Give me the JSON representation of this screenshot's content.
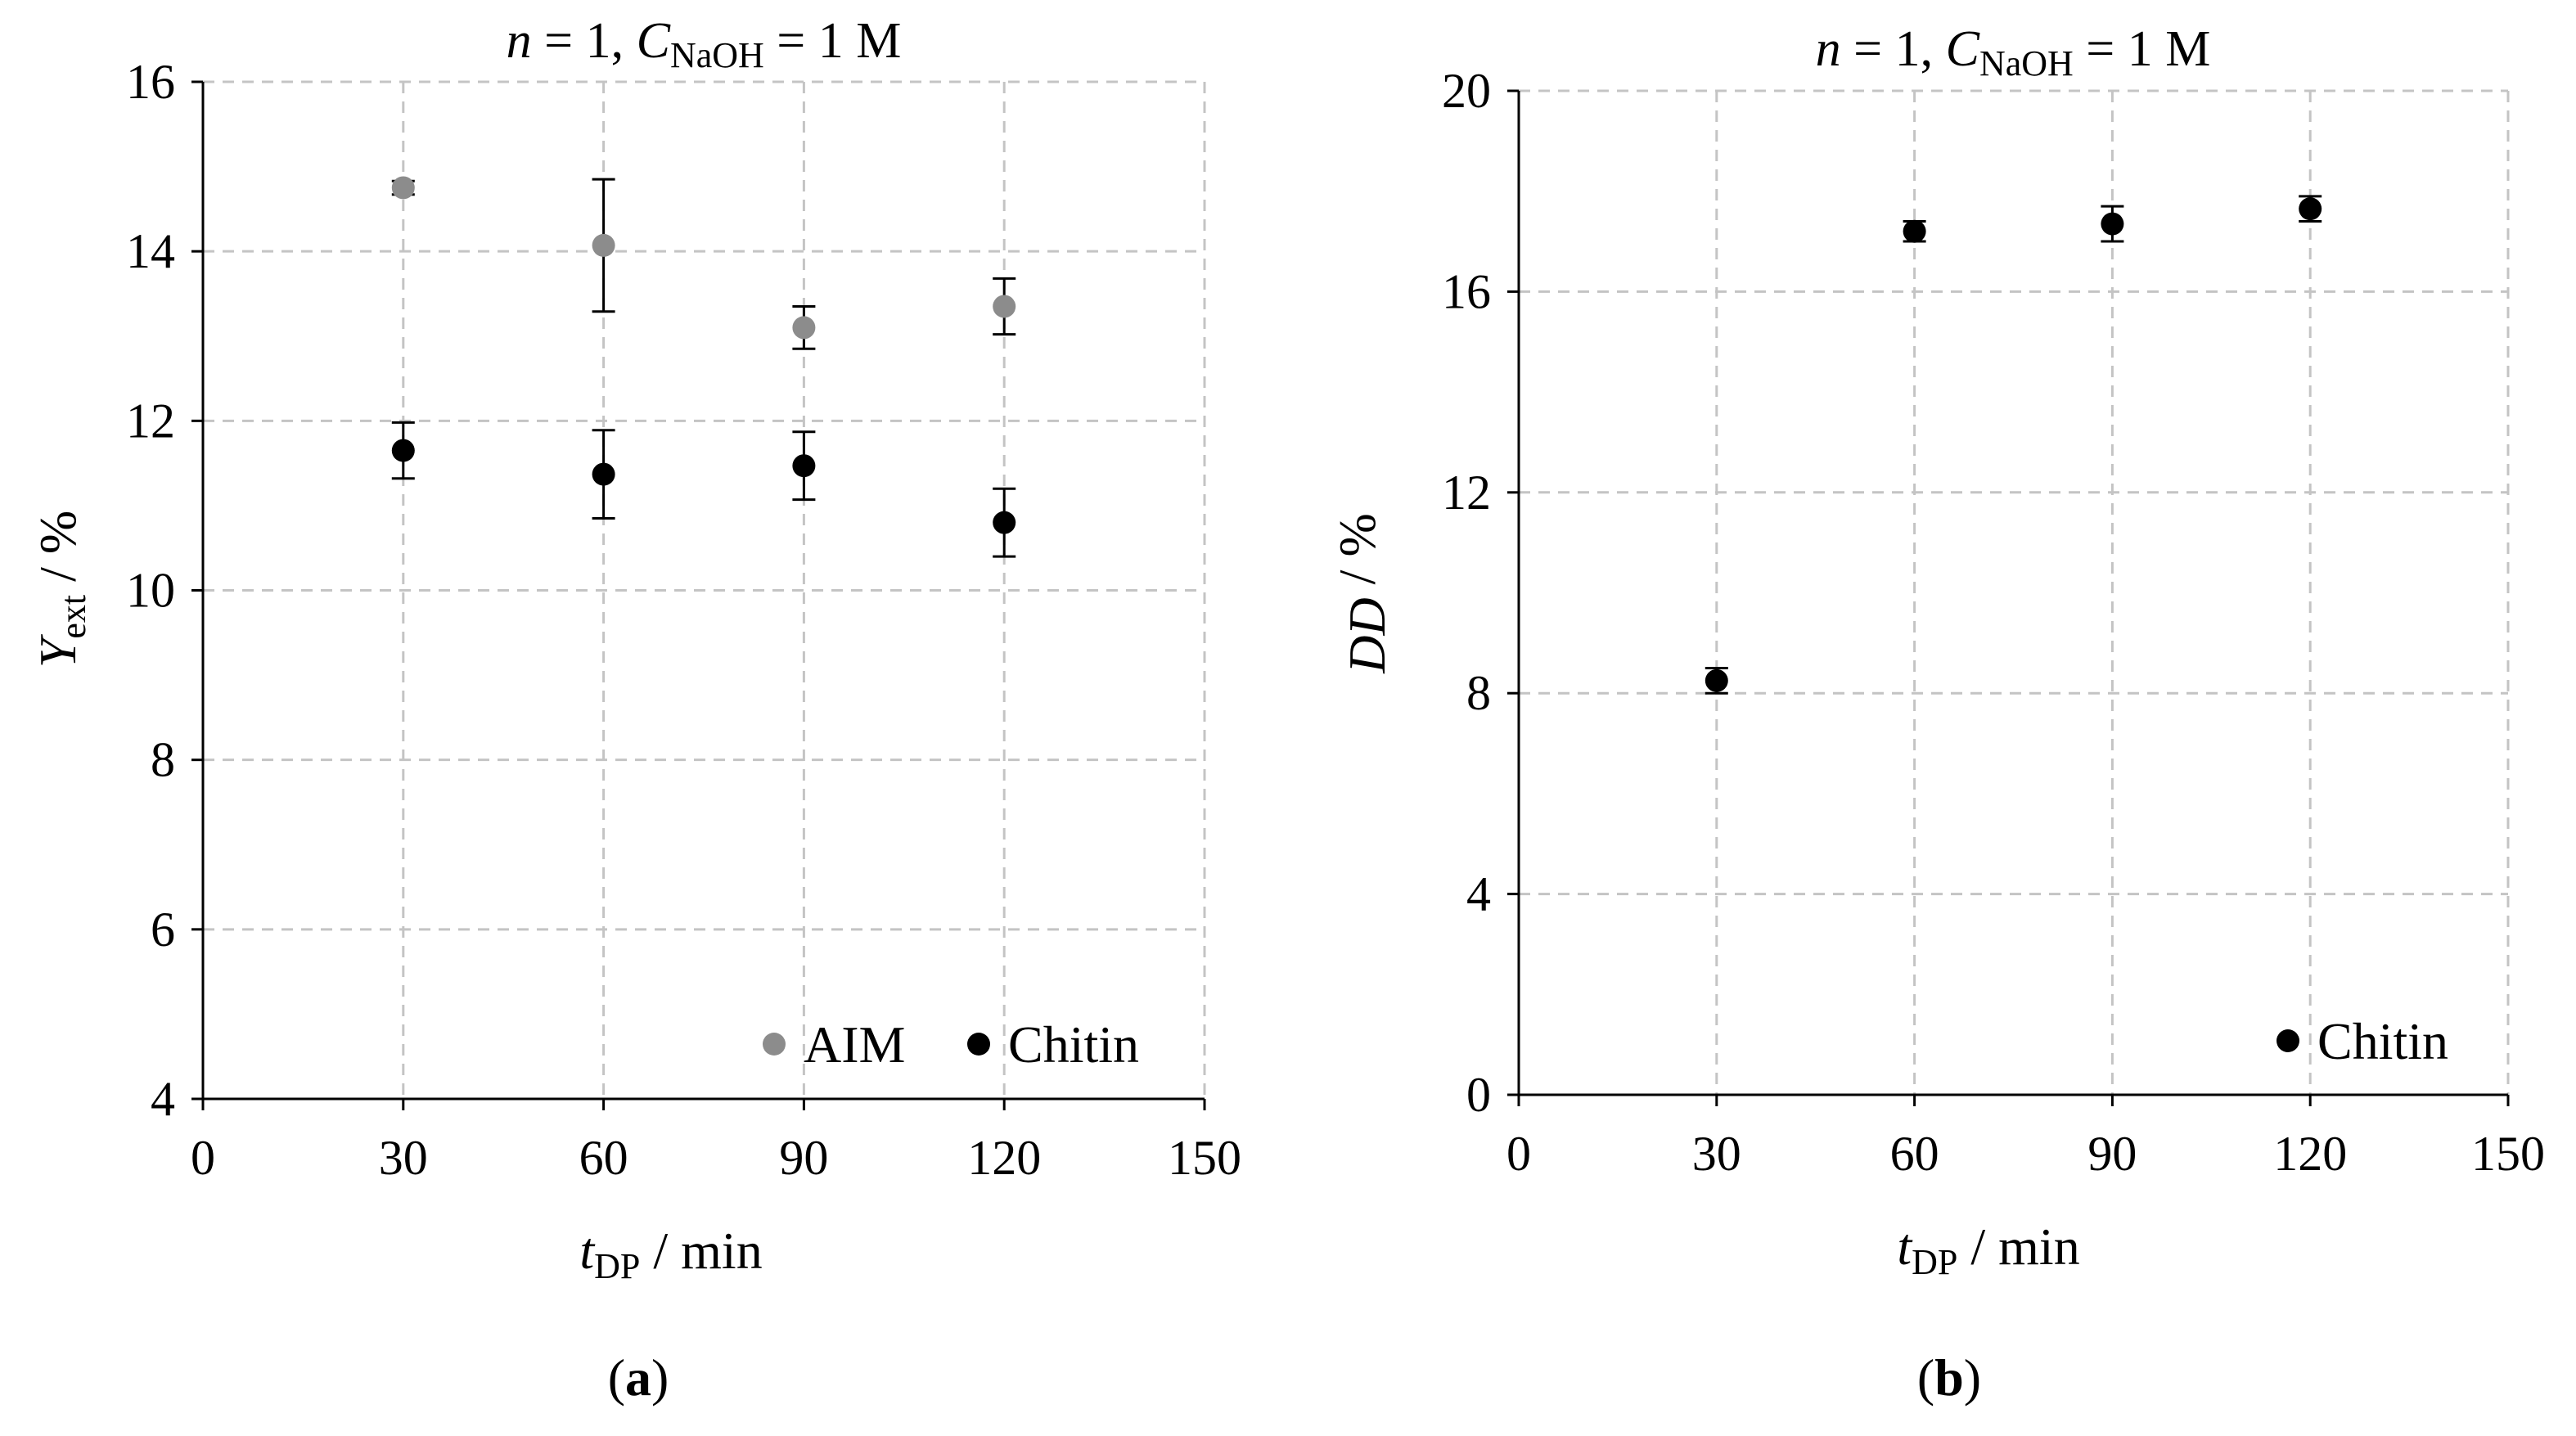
{
  "chart_data": [
    {
      "type": "scatter",
      "title": "n = 1, C NaOH = 1 M",
      "title_parts": {
        "var_n": "n",
        "eq1": " = 1, ",
        "var_c": "C",
        "sub_c": "NaOH",
        "eq2": " = 1 M"
      },
      "xlabel": "t DP / min",
      "xlabel_parts": {
        "var": "t",
        "sub": "DP",
        "unit": " / min"
      },
      "ylabel": "Y ext / %",
      "ylabel_parts": {
        "var": "Y",
        "sub": "ext",
        "unit": " / %"
      },
      "xlim": [
        0,
        150
      ],
      "ylim": [
        4,
        16
      ],
      "xticks": [
        0,
        30,
        60,
        90,
        120,
        150
      ],
      "yticks": [
        4,
        6,
        8,
        10,
        12,
        14,
        16
      ],
      "x_tick_labels": [
        "0",
        "30",
        "60",
        "90",
        "120",
        "150"
      ],
      "y_tick_labels": [
        "4",
        "6",
        "8",
        "10",
        "12",
        "14",
        "16"
      ],
      "grid": true,
      "legend_position": "bottom-right",
      "series": [
        {
          "name": "AIM",
          "color": "#8c8c8c",
          "x": [
            30,
            60,
            90,
            120
          ],
          "y": [
            14.75,
            14.07,
            13.1,
            13.35
          ],
          "err": [
            0.08,
            0.78,
            0.25,
            0.33
          ]
        },
        {
          "name": "Chitin",
          "color": "#000000",
          "x": [
            30,
            60,
            90,
            120
          ],
          "y": [
            11.65,
            11.37,
            11.47,
            10.8
          ],
          "err": [
            0.33,
            0.52,
            0.4,
            0.4
          ]
        }
      ],
      "caption": {
        "open": "(",
        "letter": "a",
        "close": ")"
      }
    },
    {
      "type": "scatter",
      "title": "n = 1, C NaOH = 1 M",
      "title_parts": {
        "var_n": "n",
        "eq1": " = 1, ",
        "var_c": "C",
        "sub_c": "NaOH",
        "eq2": " = 1 M"
      },
      "xlabel": "t DP / min",
      "xlabel_parts": {
        "var": "t",
        "sub": "DP",
        "unit": " / min"
      },
      "ylabel": "DD / %",
      "ylabel_parts": {
        "var": "DD",
        "sub": "",
        "unit": " / %"
      },
      "xlim": [
        0,
        150
      ],
      "ylim": [
        0,
        20
      ],
      "xticks": [
        0,
        30,
        60,
        90,
        120,
        150
      ],
      "yticks": [
        0,
        4,
        8,
        12,
        16,
        20
      ],
      "x_tick_labels": [
        "0",
        "30",
        "60",
        "90",
        "120",
        "150"
      ],
      "y_tick_labels": [
        "0",
        "4",
        "8",
        "12",
        "16",
        "20"
      ],
      "grid": true,
      "legend_position": "bottom-right",
      "series": [
        {
          "name": "Chitin",
          "color": "#000000",
          "x": [
            30,
            60,
            90,
            120
          ],
          "y": [
            8.25,
            17.2,
            17.35,
            17.65
          ],
          "err": [
            0.25,
            0.2,
            0.35,
            0.25
          ]
        }
      ],
      "caption": {
        "open": "(",
        "letter": "b",
        "close": ")"
      }
    }
  ]
}
